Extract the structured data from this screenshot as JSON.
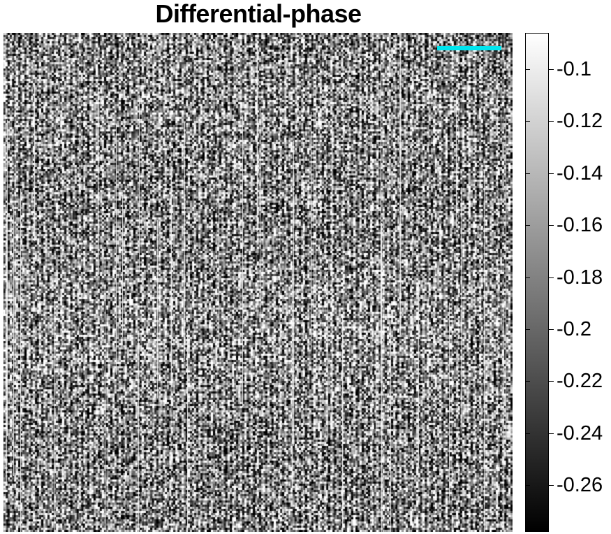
{
  "title": "Differential-phase",
  "scale_bar": {
    "color": "#00e5ee"
  },
  "colormap": {
    "name": "gray",
    "top_color": "#ffffff",
    "bottom_color": "#000000"
  },
  "colorbar": {
    "range": [
      -0.278,
      -0.086
    ],
    "ticks": [
      {
        "value": -0.1,
        "label": "-0.1"
      },
      {
        "value": -0.12,
        "label": "-0.12"
      },
      {
        "value": -0.14,
        "label": "-0.14"
      },
      {
        "value": -0.16,
        "label": "-0.16"
      },
      {
        "value": -0.18,
        "label": "-0.18"
      },
      {
        "value": -0.2,
        "label": "-0.2"
      },
      {
        "value": -0.22,
        "label": "-0.22"
      },
      {
        "value": -0.24,
        "label": "-0.24"
      },
      {
        "value": -0.26,
        "label": "-0.26"
      }
    ]
  }
}
